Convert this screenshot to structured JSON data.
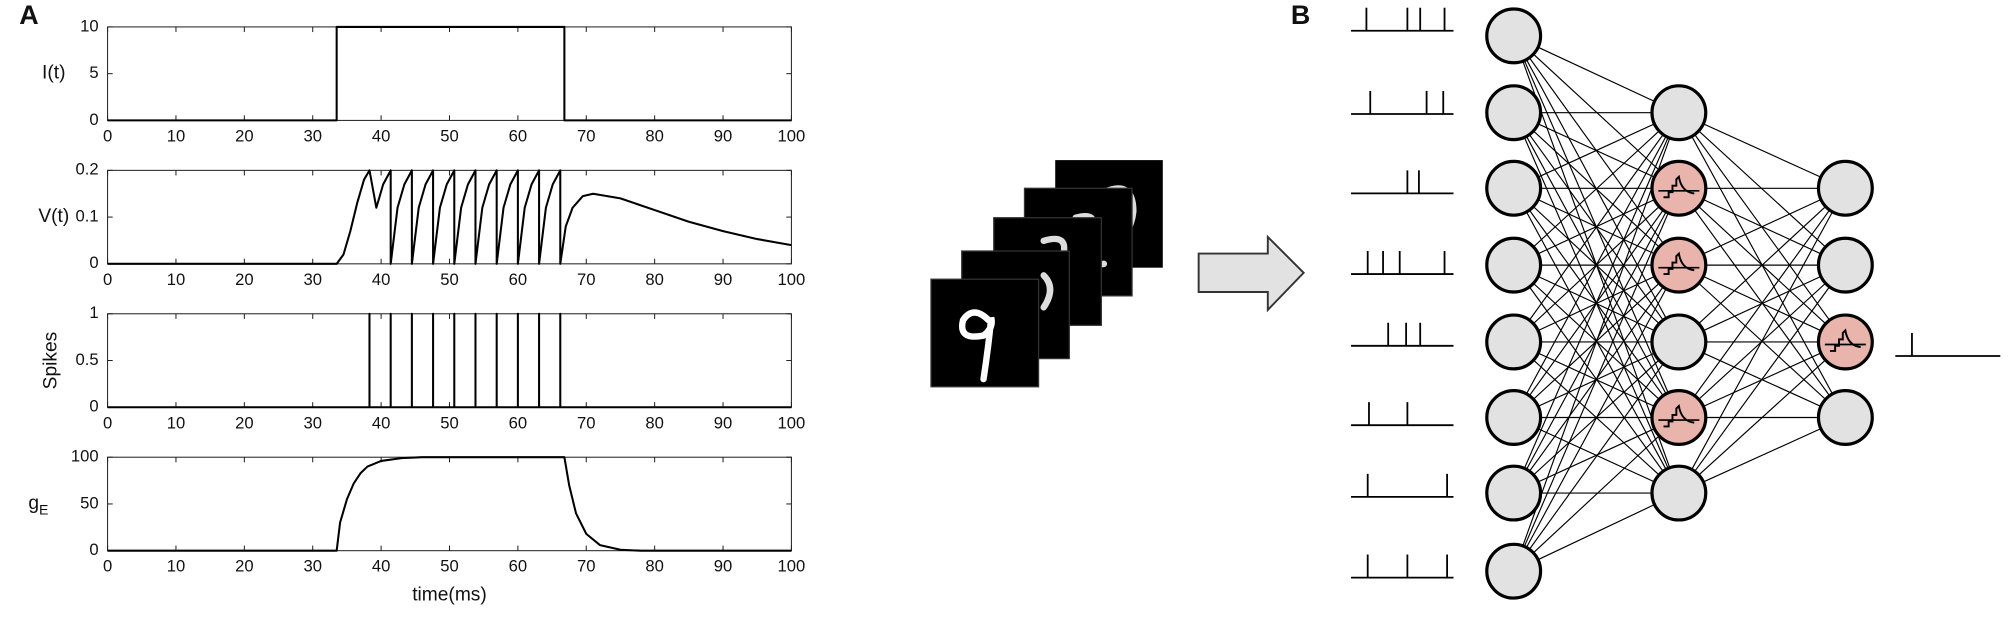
{
  "panel_labels": [
    "A",
    "B"
  ],
  "chart_data": [
    {
      "type": "line",
      "ylabel": "I(t)",
      "color": "#000000",
      "xlim": [
        0,
        100
      ],
      "ylim": [
        0,
        10
      ],
      "xticks": [
        0,
        10,
        20,
        30,
        40,
        50,
        60,
        70,
        80,
        90,
        100
      ],
      "yticks": [
        0,
        5,
        10
      ],
      "x": [
        0,
        33.5,
        33.5,
        66.8,
        66.8,
        100
      ],
      "values": [
        0,
        0,
        10,
        10,
        0,
        0
      ]
    },
    {
      "type": "line",
      "ylabel": "V(t)",
      "color": "#000000",
      "xlim": [
        0,
        100
      ],
      "ylim": [
        0,
        0.2
      ],
      "xticks": [
        0,
        10,
        20,
        30,
        40,
        50,
        60,
        70,
        80,
        90,
        100
      ],
      "yticks": [
        0,
        0.1,
        0.2
      ],
      "x": [
        0,
        33.5,
        34.5,
        35.5,
        36.5,
        37.5,
        38.3,
        39.3,
        40.3,
        41.4,
        41.4,
        42.4,
        43.4,
        44.5,
        44.5,
        45.5,
        46.5,
        47.6,
        47.6,
        48.6,
        49.6,
        50.7,
        50.7,
        51.7,
        52.7,
        53.8,
        53.8,
        54.8,
        55.8,
        56.9,
        56.9,
        57.9,
        58.9,
        60.0,
        60.0,
        61.0,
        62.0,
        63.1,
        63.1,
        64.1,
        65.1,
        66.2,
        66.2,
        67,
        68,
        69.5,
        71,
        75,
        80,
        85,
        90,
        95,
        100
      ],
      "values": [
        0,
        0,
        0.02,
        0.07,
        0.13,
        0.18,
        0.2,
        0.12,
        0.17,
        0.2,
        0,
        0.12,
        0.17,
        0.2,
        0,
        0.12,
        0.17,
        0.2,
        0,
        0.12,
        0.17,
        0.2,
        0,
        0.12,
        0.17,
        0.2,
        0,
        0.12,
        0.17,
        0.2,
        0,
        0.12,
        0.17,
        0.2,
        0,
        0.12,
        0.17,
        0.2,
        0,
        0.12,
        0.17,
        0.2,
        0,
        0.08,
        0.12,
        0.145,
        0.15,
        0.14,
        0.115,
        0.09,
        0.07,
        0.053,
        0.04
      ]
    },
    {
      "type": "line",
      "ylabel": "Spikes",
      "color": "#000000",
      "xlim": [
        0,
        100
      ],
      "ylim": [
        0,
        1
      ],
      "xticks": [
        0,
        10,
        20,
        30,
        40,
        50,
        60,
        70,
        80,
        90,
        100
      ],
      "yticks": [
        0,
        0.5,
        1
      ],
      "x": [
        0,
        38.3,
        38.3,
        38.3,
        41.4,
        41.4,
        41.4,
        44.5,
        44.5,
        44.5,
        47.6,
        47.6,
        47.6,
        50.7,
        50.7,
        50.7,
        53.8,
        53.8,
        53.8,
        56.9,
        56.9,
        56.9,
        60.0,
        60.0,
        60.0,
        63.1,
        63.1,
        63.1,
        66.2,
        66.2,
        66.2,
        100
      ],
      "values": [
        0,
        0,
        1,
        0,
        0,
        1,
        0,
        0,
        1,
        0,
        0,
        1,
        0,
        0,
        1,
        0,
        0,
        1,
        0,
        0,
        1,
        0,
        0,
        1,
        0,
        0,
        1,
        0,
        0,
        1,
        0,
        0
      ]
    },
    {
      "type": "line",
      "ylabel": "g",
      "ylabel_subscript": "E",
      "xlabel": "time(ms)",
      "color": "#000000",
      "xlim": [
        0,
        100
      ],
      "ylim": [
        0,
        100
      ],
      "xticks": [
        0,
        10,
        20,
        30,
        40,
        50,
        60,
        70,
        80,
        90,
        100
      ],
      "yticks": [
        0,
        50,
        100
      ],
      "x": [
        0,
        33.5,
        34,
        35,
        36,
        37,
        38,
        40,
        43,
        46,
        66.8,
        67.5,
        68.5,
        70,
        72,
        75,
        78,
        100
      ],
      "values": [
        0,
        0,
        30,
        55,
        72,
        83,
        90,
        96,
        99,
        100,
        100,
        70,
        40,
        18,
        6,
        1,
        0,
        0
      ]
    }
  ]
}
